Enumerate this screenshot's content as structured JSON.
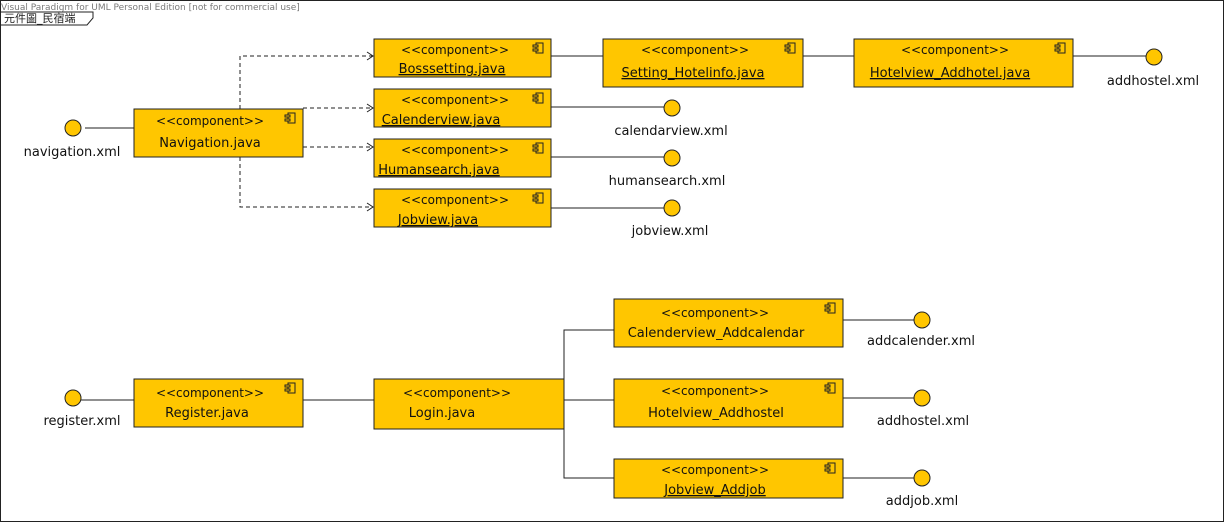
{
  "watermark": "Visual Paradigm for UML Personal Edition [not for commercial use]",
  "diagram_title": "元件圖_民宿端",
  "stereotype": "<<component>>",
  "components": {
    "bosssetting": "Bosssetting.java",
    "setting_hotelinfo": "Setting_Hotelinfo.java",
    "hotelview_addhotel": "Hotelview_Addhotel.java",
    "navigation": "Navigation.java",
    "calenderview": "Calenderview.java",
    "humansearch": "Humansearch.java",
    "jobview": "Jobview.java",
    "register": "Register.java",
    "login": "Login.java",
    "calenderview_addcalendar": "Calenderview_Addcalendar",
    "hotelview_addhostel": "Hotelview_Addhostel",
    "jobview_addjob": "Jobview_Addjob"
  },
  "interfaces": {
    "addhostel_top": "addhostel.xml",
    "navigation": "navigation.xml",
    "calendarview": "calendarview.xml",
    "humansearch": "humansearch.xml",
    "jobview": "jobview.xml",
    "register": "register.xml",
    "addcalender": "addcalender.xml",
    "addhostel": "addhostel.xml",
    "addjob": "addjob.xml"
  }
}
